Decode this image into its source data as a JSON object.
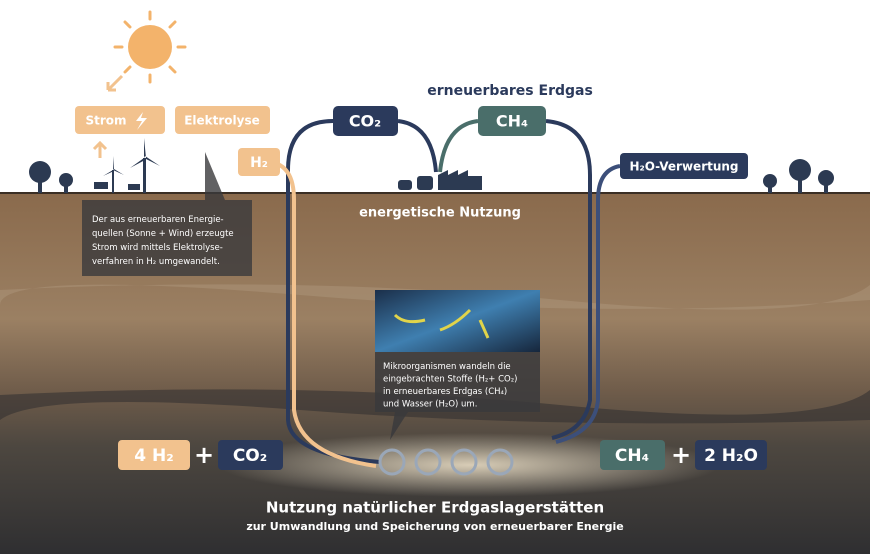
{
  "surface": {
    "headline": "erneuerbares Erdgas",
    "strom": "Strom",
    "elektrolyse": "Elektrolyse",
    "h2": "H₂",
    "co2": "CO₂",
    "ch4": "CH₄",
    "h2o_use": "H₂O-Verwertung",
    "energy_use": "energetische Nutzung"
  },
  "notes": {
    "electrolysis": [
      "Der aus erneuerbaren Energie-",
      "quellen (Sonne + Wind) erzeugte",
      "Strom wird mittels Elektrolyse-",
      "verfahren in H₂ umgewandelt."
    ],
    "microbes": [
      "Mikroorganismen wandeln die",
      "eingebrachten Stoffe (H₂+ CO₂)",
      "in erneuerbares Erdgas (CH₄)",
      "und Wasser (H₂O) um."
    ]
  },
  "equation": {
    "left": [
      "4 H₂",
      "+",
      "CO₂"
    ],
    "right": [
      "CH₄",
      "+",
      "2 H₂O"
    ]
  },
  "footer": {
    "title": "Nutzung natürlicher Erdgaslagerstätten",
    "subtitle": "zur Umwandlung und Speicherung von erneuerbarer Energie"
  }
}
